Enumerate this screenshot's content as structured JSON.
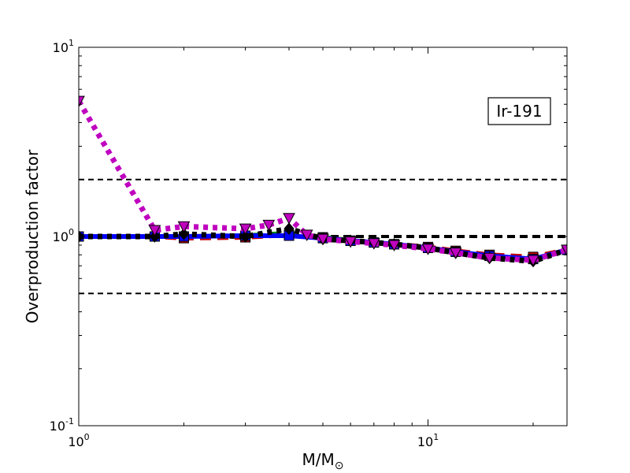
{
  "chart_data": {
    "type": "line",
    "title": "",
    "annotation": "Ir-191",
    "xlabel": "M/M",
    "xlabel_subscript": "⊙",
    "ylabel": "Overproduction factor",
    "x_scale": "log",
    "y_scale": "log",
    "xlim": [
      1,
      25
    ],
    "ylim": [
      0.1,
      10
    ],
    "grid": false,
    "legend": "none",
    "x_ticks": [
      {
        "base": "10",
        "exp": "0",
        "value": 1
      },
      {
        "base": "10",
        "exp": "1",
        "value": 10
      }
    ],
    "y_ticks": [
      {
        "base": "10",
        "exp": "-1",
        "value": 0.1
      },
      {
        "base": "10",
        "exp": "0",
        "value": 1
      },
      {
        "base": "10",
        "exp": "1",
        "value": 10
      }
    ],
    "reference_lines": [
      {
        "y": 2.0,
        "color": "#000000",
        "weight": "thin"
      },
      {
        "y": 1.0,
        "color": "#000000",
        "weight": "thick"
      },
      {
        "y": 0.5,
        "color": "#000000",
        "weight": "thin"
      }
    ],
    "series": [
      {
        "color": "#cc0000",
        "style": "dashed",
        "marker": "square",
        "x": [
          1.0,
          1.65,
          2.0,
          3.0,
          4.0,
          5.0,
          6.0,
          7.0,
          8.0,
          10.0,
          12.0,
          15.0,
          20.0,
          25.0
        ],
        "y": [
          1.0,
          1.0,
          0.98,
          0.99,
          1.02,
          0.99,
          0.95,
          0.93,
          0.91,
          0.88,
          0.84,
          0.8,
          0.78,
          0.85
        ]
      },
      {
        "color": "#008000",
        "style": "dashed",
        "marker": "circle",
        "x": [
          1.0,
          1.65,
          2.0,
          3.0,
          4.0,
          5.0,
          6.0,
          7.0,
          8.0,
          10.0,
          12.0,
          15.0,
          20.0,
          25.0
        ],
        "y": [
          1.0,
          1.0,
          1.0,
          1.01,
          1.04,
          0.99,
          0.95,
          0.93,
          0.91,
          0.87,
          0.83,
          0.79,
          0.76,
          0.85
        ]
      },
      {
        "color": "#0000ff",
        "style": "solid",
        "marker": "square",
        "x": [
          1.0,
          1.65,
          2.0,
          3.0,
          4.0,
          5.0,
          6.0,
          7.0,
          8.0,
          10.0,
          12.0,
          15.0,
          20.0,
          25.0
        ],
        "y": [
          1.0,
          1.0,
          1.0,
          1.01,
          1.01,
          0.98,
          0.95,
          0.93,
          0.91,
          0.87,
          0.83,
          0.79,
          0.76,
          0.85
        ]
      },
      {
        "color": "#000000",
        "style": "dotted",
        "marker": "diamond",
        "x": [
          1.0,
          1.65,
          2.0,
          3.0,
          4.0,
          5.0,
          6.0,
          7.0,
          8.0,
          10.0,
          12.0,
          15.0,
          20.0,
          25.0
        ],
        "y": [
          1.0,
          1.0,
          1.03,
          1.0,
          1.1,
          0.97,
          0.95,
          0.93,
          0.91,
          0.87,
          0.82,
          0.77,
          0.74,
          0.85
        ]
      },
      {
        "color": "#bf00bf",
        "style": "dotted",
        "marker": "triangle-down",
        "x": [
          1.0,
          1.65,
          2.0,
          3.0,
          3.5,
          4.0,
          4.5,
          5.0,
          6.0,
          7.0,
          8.0,
          10.0,
          12.0,
          15.0,
          20.0,
          25.0
        ],
        "y": [
          5.2,
          1.08,
          1.13,
          1.1,
          1.15,
          1.25,
          1.02,
          0.97,
          0.94,
          0.92,
          0.9,
          0.86,
          0.82,
          0.77,
          0.75,
          0.85
        ]
      }
    ]
  }
}
